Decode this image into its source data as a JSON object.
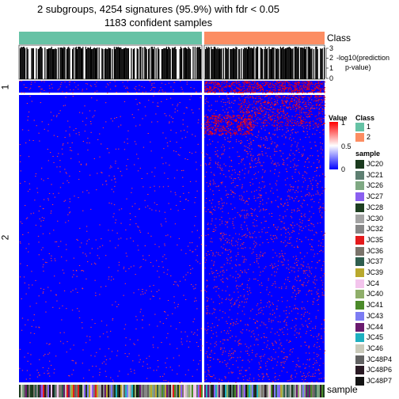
{
  "chart_data": {
    "type": "heatmap",
    "title_line1": "2 subgroups, 4254 signatures (95.9%) with fdr < 0.05",
    "title_line2": "1183 confident samples",
    "annotation_top_label": "Class",
    "annotation_bottom_label": "sample",
    "pvalue_axis_label_line1": "-log10(prediction",
    "pvalue_axis_label_line2": "p-value)",
    "pvalue_ticks": [
      "3",
      "2",
      "1",
      "0"
    ],
    "row_groups": [
      "1",
      "2"
    ],
    "class_groups": [
      "1",
      "2"
    ],
    "value_legend": {
      "title": "Value",
      "ticks": [
        "1",
        "0.5",
        "0"
      ],
      "colors": {
        "high": "#ff0000",
        "mid": "#ffffff",
        "low": "#0000ff"
      }
    },
    "class_legend": {
      "title": "Class",
      "items": [
        {
          "label": "1",
          "color": "#66c2a5"
        },
        {
          "label": "2",
          "color": "#fc8d62"
        }
      ]
    },
    "sample_legend": {
      "title": "sample",
      "items": [
        {
          "label": "JC20",
          "color": "#1b3a1e"
        },
        {
          "label": "JC21",
          "color": "#5e7f72"
        },
        {
          "label": "JC26",
          "color": "#7fa883"
        },
        {
          "label": "JC27",
          "color": "#8a5ff0"
        },
        {
          "label": "JC28",
          "color": "#1e3f21"
        },
        {
          "label": "JC30",
          "color": "#a3a3a3"
        },
        {
          "label": "JC32",
          "color": "#878787"
        },
        {
          "label": "JC35",
          "color": "#e41a1c"
        },
        {
          "label": "JC36",
          "color": "#7a736a"
        },
        {
          "label": "JC37",
          "color": "#2f5e4f"
        },
        {
          "label": "JC39",
          "color": "#b9a92e"
        },
        {
          "label": "JC4",
          "color": "#f3c4ec"
        },
        {
          "label": "JC40",
          "color": "#8fae6a"
        },
        {
          "label": "JC41",
          "color": "#4b8a2a"
        },
        {
          "label": "JC43",
          "color": "#7c7cf3"
        },
        {
          "label": "JC44",
          "color": "#6a1b6e"
        },
        {
          "label": "JC45",
          "color": "#1fb0c0"
        },
        {
          "label": "JC46",
          "color": "#c9c9b9"
        },
        {
          "label": "JC48P4",
          "color": "#626262"
        },
        {
          "label": "JC48P6",
          "color": "#2a1a24"
        },
        {
          "label": "JC48P7",
          "color": "#141414"
        }
      ]
    }
  }
}
